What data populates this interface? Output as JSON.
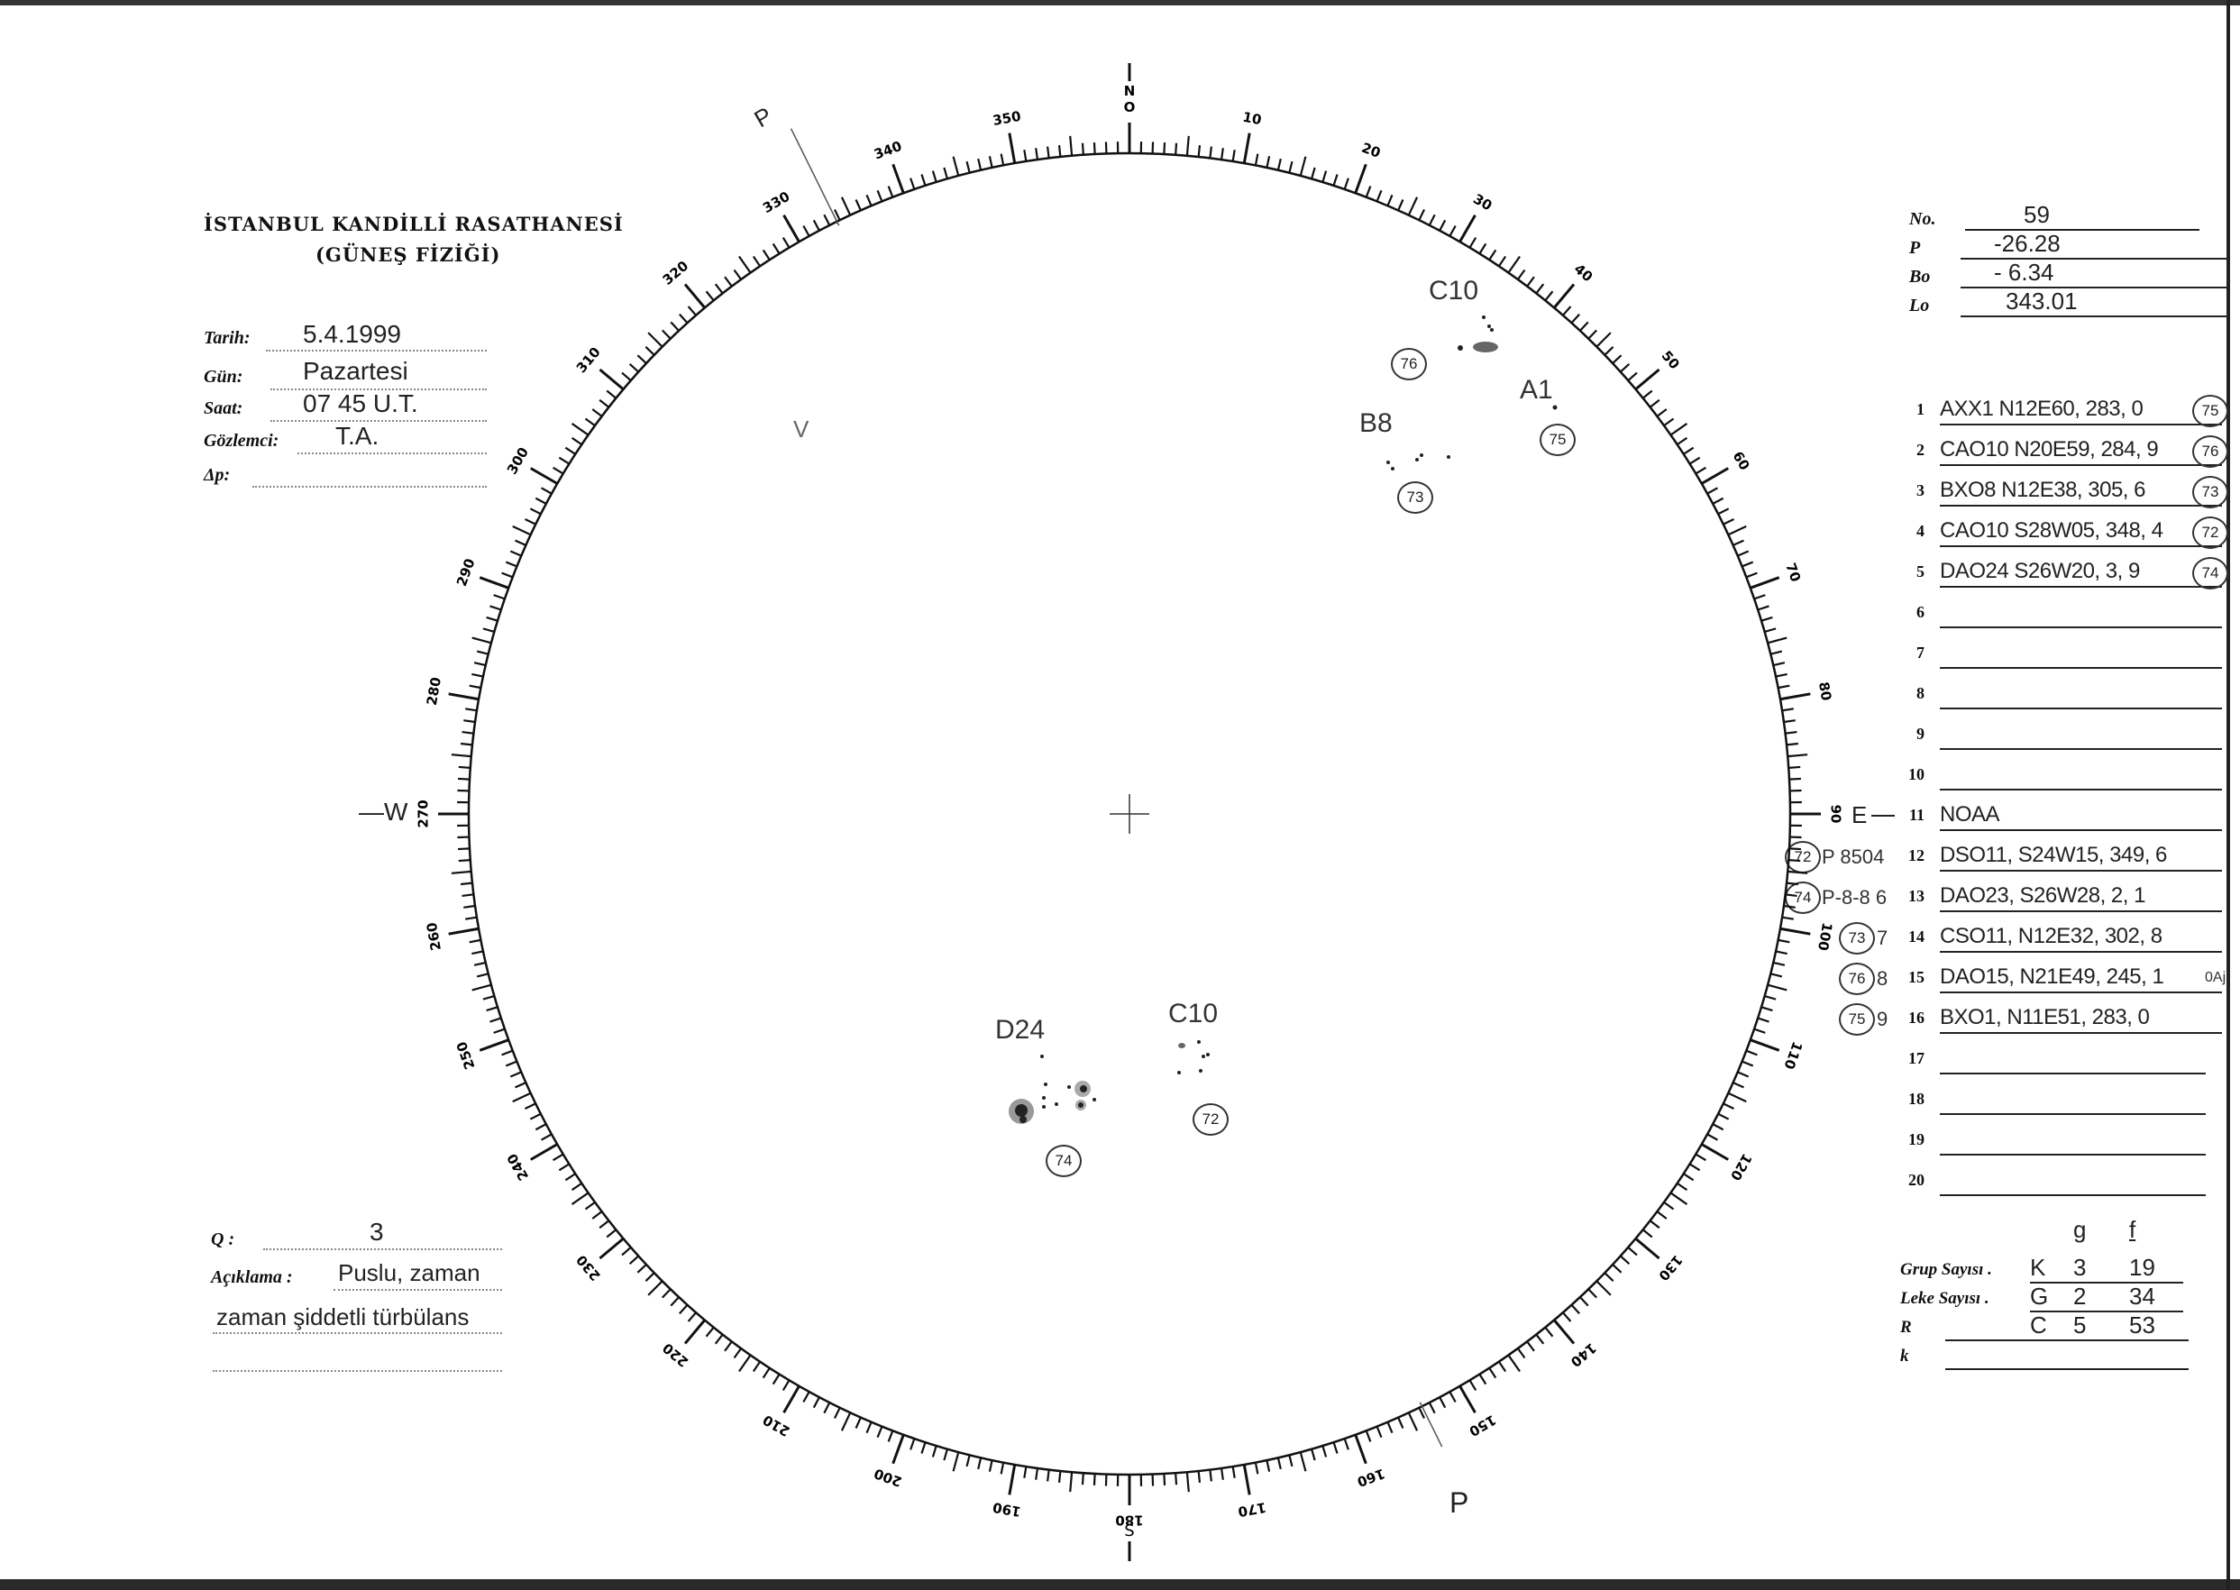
{
  "header": {
    "title": "İSTANBUL KANDİLLİ RASATHANESİ",
    "subtitle": "(GÜNEŞ FİZİĞİ)"
  },
  "fields": [
    {
      "label": "Tarih:",
      "value": "5.4.1999"
    },
    {
      "label": "Gün:",
      "value": "Pazartesi"
    },
    {
      "label": "Saat:",
      "value": "07 45  U.T."
    },
    {
      "label": "Gözlemci:",
      "value": "T.A."
    },
    {
      "label": "Δp:",
      "value": ""
    }
  ],
  "quality": {
    "label": "Q :",
    "value": "3"
  },
  "remarks": {
    "label": "Açıklama :",
    "line1": "Puslu, zaman",
    "line2": "zaman   şiddetli     türbülans",
    "line3": ""
  },
  "params": [
    {
      "label": "No.",
      "value": "59"
    },
    {
      "label": "P",
      "value": "-26.28"
    },
    {
      "label": "Bo",
      "value": "- 6.34"
    },
    {
      "label": "Lo",
      "value": "343.01"
    }
  ],
  "groups": [
    {
      "n": "1",
      "text": "AXX1 N12E60, 283, 0",
      "circle": "75"
    },
    {
      "n": "2",
      "text": "CAO10 N20E59, 284, 9",
      "circle": "76"
    },
    {
      "n": "3",
      "text": "BXO8 N12E38, 305, 6",
      "circle": "73"
    },
    {
      "n": "4",
      "text": "CAO10 S28W05, 348, 4",
      "circle": "72"
    },
    {
      "n": "5",
      "text": "DAO24 S26W20, 3, 9",
      "circle": "74"
    },
    {
      "n": "6",
      "text": ""
    },
    {
      "n": "7",
      "text": ""
    },
    {
      "n": "8",
      "text": ""
    },
    {
      "n": "9",
      "text": ""
    },
    {
      "n": "10",
      "text": ""
    },
    {
      "n": "11",
      "text": "NOAA"
    },
    {
      "n": "12",
      "text": "DSO11, S24W15, 349, 6",
      "note_circle": "72",
      "note": "P 8504"
    },
    {
      "n": "13",
      "text": "DAO23, S26W28, 2, 1",
      "note_circle": "74",
      "note": "P-8-8 6"
    },
    {
      "n": "14",
      "text": "CSO11, N12E32, 302, 8",
      "note_circle": "73",
      "note": "7"
    },
    {
      "n": "15",
      "text": "DAO15, N21E49, 245, 1",
      "note_circle": "76",
      "note": "8",
      "extra": "0Aj"
    },
    {
      "n": "16",
      "text": "BXO1, N11E51, 283, 0",
      "note_circle": "75",
      "note": "9"
    },
    {
      "n": "17",
      "text": ""
    },
    {
      "n": "18",
      "text": ""
    },
    {
      "n": "19",
      "text": ""
    },
    {
      "n": "20",
      "text": ""
    }
  ],
  "summary": {
    "col_headers": [
      "g",
      "f"
    ],
    "rows": [
      {
        "label": "Grup Sayısı .",
        "code": "K",
        "g": "3",
        "f": "19"
      },
      {
        "label": "Leke Sayısı .",
        "code": "G",
        "g": "2",
        "f": "34"
      },
      {
        "label": "R",
        "code": "C",
        "g": "5",
        "f": "53"
      },
      {
        "label": "k",
        "code": "",
        "g": "",
        "f": ""
      }
    ]
  },
  "disk": {
    "north": "N",
    "north_zero": "O",
    "south": "S",
    "west": "W",
    "east": "E",
    "p_label": "P",
    "v_mark": "V",
    "scale_labels": [
      "0",
      "10",
      "20",
      "30",
      "40",
      "50",
      "60",
      "70",
      "80",
      "90",
      "100",
      "110",
      "120",
      "130",
      "140",
      "150",
      "160",
      "170",
      "180",
      "190",
      "200",
      "210",
      "220",
      "230",
      "240",
      "250",
      "260",
      "270",
      "280",
      "290",
      "300",
      "310",
      "320",
      "330",
      "340",
      "350"
    ],
    "p_angle_deg": -26.28,
    "groups": [
      {
        "label": "C10",
        "circle": "76"
      },
      {
        "label": "A1",
        "circle": "75"
      },
      {
        "label": "B8",
        "circle": "73"
      },
      {
        "label": "D24",
        "circle": "74"
      },
      {
        "label": "C10",
        "circle": "72"
      }
    ]
  }
}
